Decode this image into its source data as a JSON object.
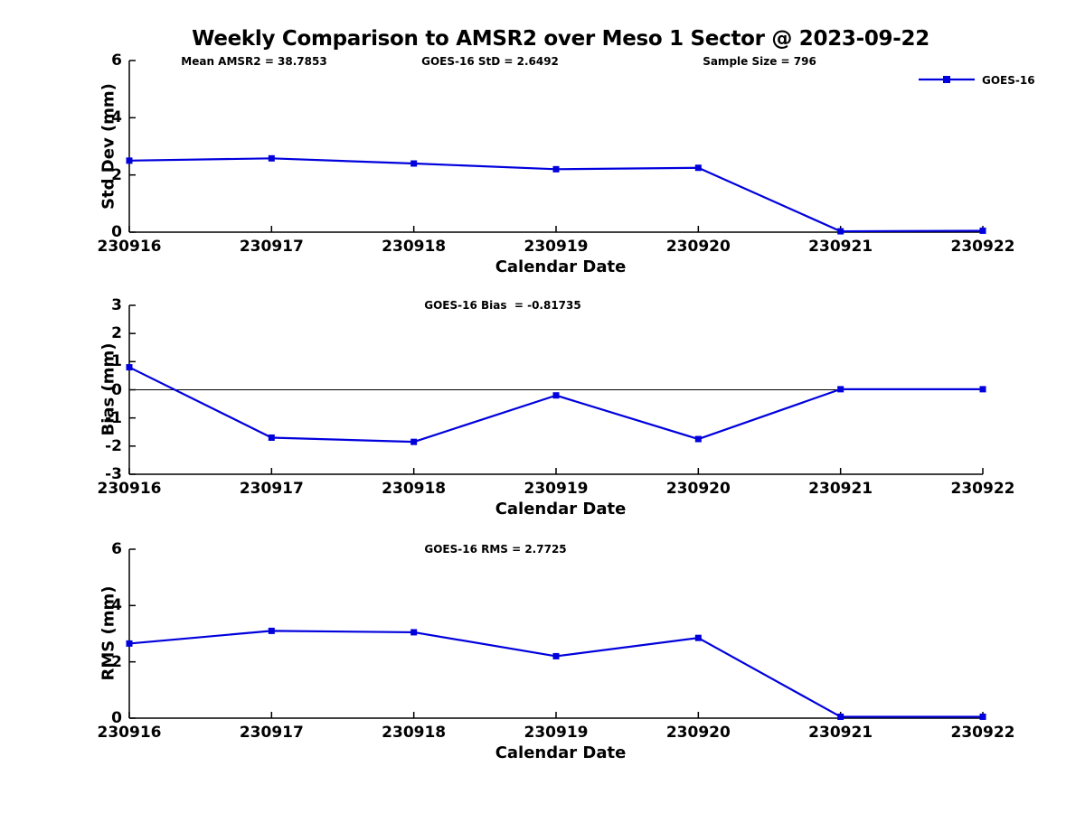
{
  "title": "Weekly Comparison to AMSR2 over Meso 1 Sector @ 2023-09-22",
  "legend": {
    "label": "GOES-16",
    "color": "#0000DD"
  },
  "colors": {
    "series": "#0000DD",
    "axis": "#000000",
    "background": "#FFFFFF"
  },
  "chart_data": [
    {
      "type": "line",
      "panel": "std-dev",
      "annotations": [
        "Mean AMSR2 = 38.7853",
        "GOES-16 StD = 2.6492",
        "Sample Size = 796"
      ],
      "ylabel": "Std Dev (mm)",
      "xlabel": "Calendar Date",
      "categories": [
        "230916",
        "230917",
        "230918",
        "230919",
        "230920",
        "230921",
        "230922"
      ],
      "series": [
        {
          "name": "GOES-16",
          "values": [
            2.5,
            2.58,
            2.4,
            2.2,
            2.25,
            0.03,
            0.05
          ]
        }
      ],
      "ylim": [
        0,
        6
      ],
      "yticks": [
        0,
        2,
        4,
        6
      ],
      "zero_line": false,
      "legend_position": "top-right",
      "grid": false
    },
    {
      "type": "line",
      "panel": "bias",
      "title": "GOES-16 Bias  = -0.81735",
      "ylabel": "Bias (mm)",
      "xlabel": "Calendar Date",
      "categories": [
        "230916",
        "230917",
        "230918",
        "230919",
        "230920",
        "230921",
        "230922"
      ],
      "series": [
        {
          "name": "GOES-16",
          "values": [
            0.8,
            -1.7,
            -1.85,
            -0.2,
            -1.75,
            0.02,
            0.02
          ]
        }
      ],
      "ylim": [
        -3,
        3
      ],
      "yticks": [
        -3,
        -2,
        -1,
        0,
        1,
        2,
        3
      ],
      "zero_line": true,
      "grid": false
    },
    {
      "type": "line",
      "panel": "rms",
      "title": "GOES-16 RMS = 2.7725",
      "ylabel": "RMS (mm)",
      "xlabel": "Calendar Date",
      "categories": [
        "230916",
        "230917",
        "230918",
        "230919",
        "230920",
        "230921",
        "230922"
      ],
      "series": [
        {
          "name": "GOES-16",
          "values": [
            2.65,
            3.1,
            3.05,
            2.2,
            2.85,
            0.05,
            0.05
          ]
        }
      ],
      "ylim": [
        0,
        6
      ],
      "yticks": [
        0,
        2,
        4,
        6
      ],
      "zero_line": false,
      "grid": false
    }
  ]
}
